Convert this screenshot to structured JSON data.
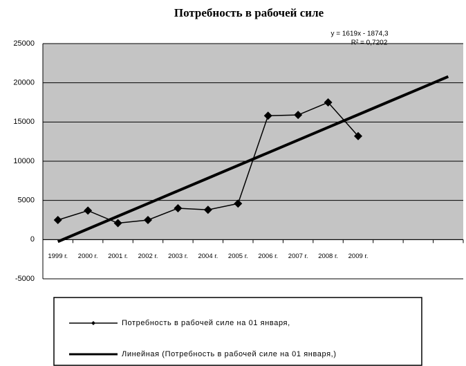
{
  "chart_data": {
    "type": "line",
    "title": "Потребность в рабочей силе",
    "categories": [
      "1999 г.",
      "2000 г.",
      "2001 г.",
      "2002 г.",
      "2003 г.",
      "2004 г.",
      "2005 г.",
      "2006 г.",
      "2007 г.",
      "2008 г.",
      "2009 г.",
      null,
      null,
      null
    ],
    "series": [
      {
        "name": "Потребность в рабочей силе на 01 января,",
        "color": "#000000",
        "marker": "diamond",
        "values": [
          2500,
          3700,
          2100,
          2500,
          4000,
          3800,
          4600,
          15800,
          15900,
          17500,
          13200,
          null,
          null,
          null
        ]
      },
      {
        "name": "Линейная (Потребность в рабочей силе на 01 января,)",
        "color": "#000000",
        "marker": "none",
        "values": [
          -255.3,
          1363.7,
          2982.7,
          4601.7,
          6220.7,
          7839.7,
          9458.7,
          11077.7,
          12696.7,
          14315.7,
          15934.7,
          17553.7,
          19172.7,
          20791.7
        ]
      }
    ],
    "annotations": [
      "y = 1619x - 1874,3",
      "R² = 0,7202"
    ],
    "ylim": [
      -5000,
      25000
    ],
    "yticks": [
      -5000,
      0,
      5000,
      10000,
      15000,
      20000,
      25000
    ],
    "grid": true,
    "legend": "bottom"
  }
}
